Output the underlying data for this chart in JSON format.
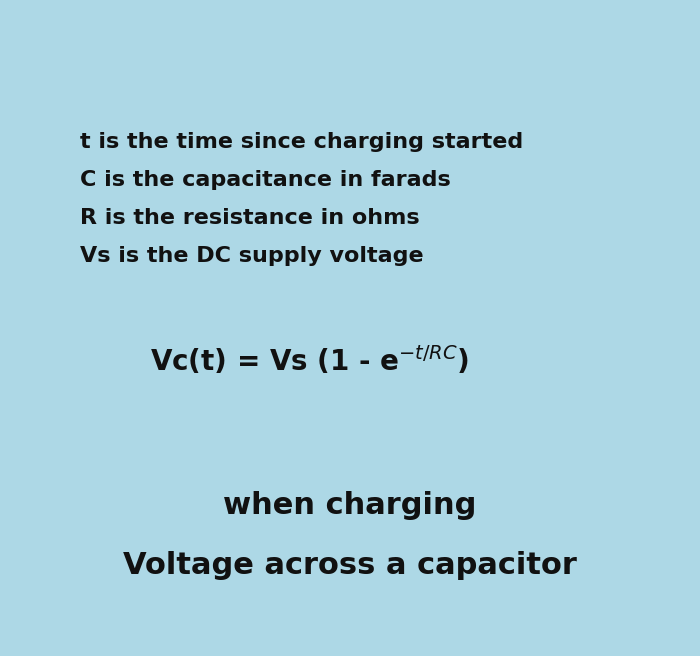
{
  "background_color": "#add8e6",
  "title_line1": "Voltage across a capacitor",
  "title_line2": "when charging",
  "title_fontsize": 22,
  "formula_fontsize": 20,
  "desc_lines": [
    "Vs is the DC supply voltage",
    "R is the resistance in ohms",
    "C is the capacitance in farads",
    "t is the time since charging started"
  ],
  "desc_fontsize": 16,
  "text_color": "#111111",
  "fig_width": 7.0,
  "fig_height": 6.56,
  "dpi": 100
}
